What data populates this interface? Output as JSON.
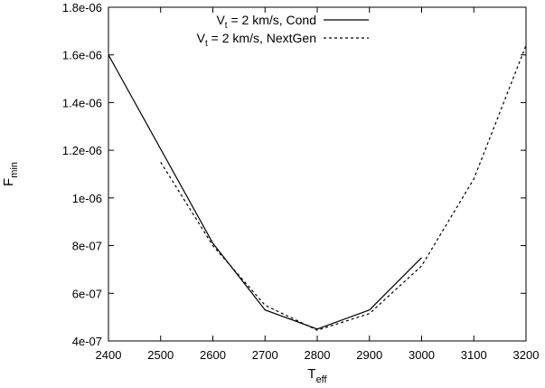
{
  "chart_data": {
    "type": "line",
    "xlabel": {
      "main": "T",
      "sub": "eff"
    },
    "ylabel": {
      "main": "F",
      "sub": "min"
    },
    "xlim": [
      2400,
      3200
    ],
    "ylim": [
      4e-07,
      1.8e-06
    ],
    "x_ticks": [
      {
        "value": 2400,
        "label": "2400"
      },
      {
        "value": 2500,
        "label": "2500"
      },
      {
        "value": 2600,
        "label": "2600"
      },
      {
        "value": 2700,
        "label": "2700"
      },
      {
        "value": 2800,
        "label": "2800"
      },
      {
        "value": 2900,
        "label": "2900"
      },
      {
        "value": 3000,
        "label": "3000"
      },
      {
        "value": 3100,
        "label": "3100"
      },
      {
        "value": 3200,
        "label": "3200"
      }
    ],
    "y_ticks": [
      {
        "value": 4e-07,
        "label": "4e-07"
      },
      {
        "value": 6e-07,
        "label": "6e-07"
      },
      {
        "value": 8e-07,
        "label": "8e-07"
      },
      {
        "value": 1e-06,
        "label": "1e-06"
      },
      {
        "value": 1.2e-06,
        "label": "1.2e-06"
      },
      {
        "value": 1.4e-06,
        "label": "1.4e-06"
      },
      {
        "value": 1.6e-06,
        "label": "1.6e-06"
      },
      {
        "value": 1.8e-06,
        "label": "1.8e-06"
      }
    ],
    "legend_placement": "top-right",
    "grid": false,
    "series": [
      {
        "name": "V_t = 2 km/s, Cond",
        "legend": {
          "v": "V",
          "sub": "t",
          "rest": " = 2 km/s, Cond"
        },
        "style": "solid",
        "color": "#000000",
        "x": [
          2400,
          2600,
          2700,
          2800,
          2900,
          3000
        ],
        "y": [
          1.6e-06,
          8.1e-07,
          5.3e-07,
          4.5e-07,
          5.3e-07,
          7.5e-07
        ]
      },
      {
        "name": "V_t = 2 km/s, NextGen",
        "legend": {
          "v": "V",
          "sub": "t",
          "rest": " = 2 km/s, NextGen"
        },
        "style": "dashed",
        "color": "#000000",
        "x": [
          2500,
          2600,
          2700,
          2800,
          2900,
          3000,
          3100,
          3200
        ],
        "y": [
          1.15e-06,
          8e-07,
          5.5e-07,
          4.45e-07,
          5.15e-07,
          7.15e-07,
          1.08e-06,
          1.64e-06
        ]
      }
    ]
  }
}
